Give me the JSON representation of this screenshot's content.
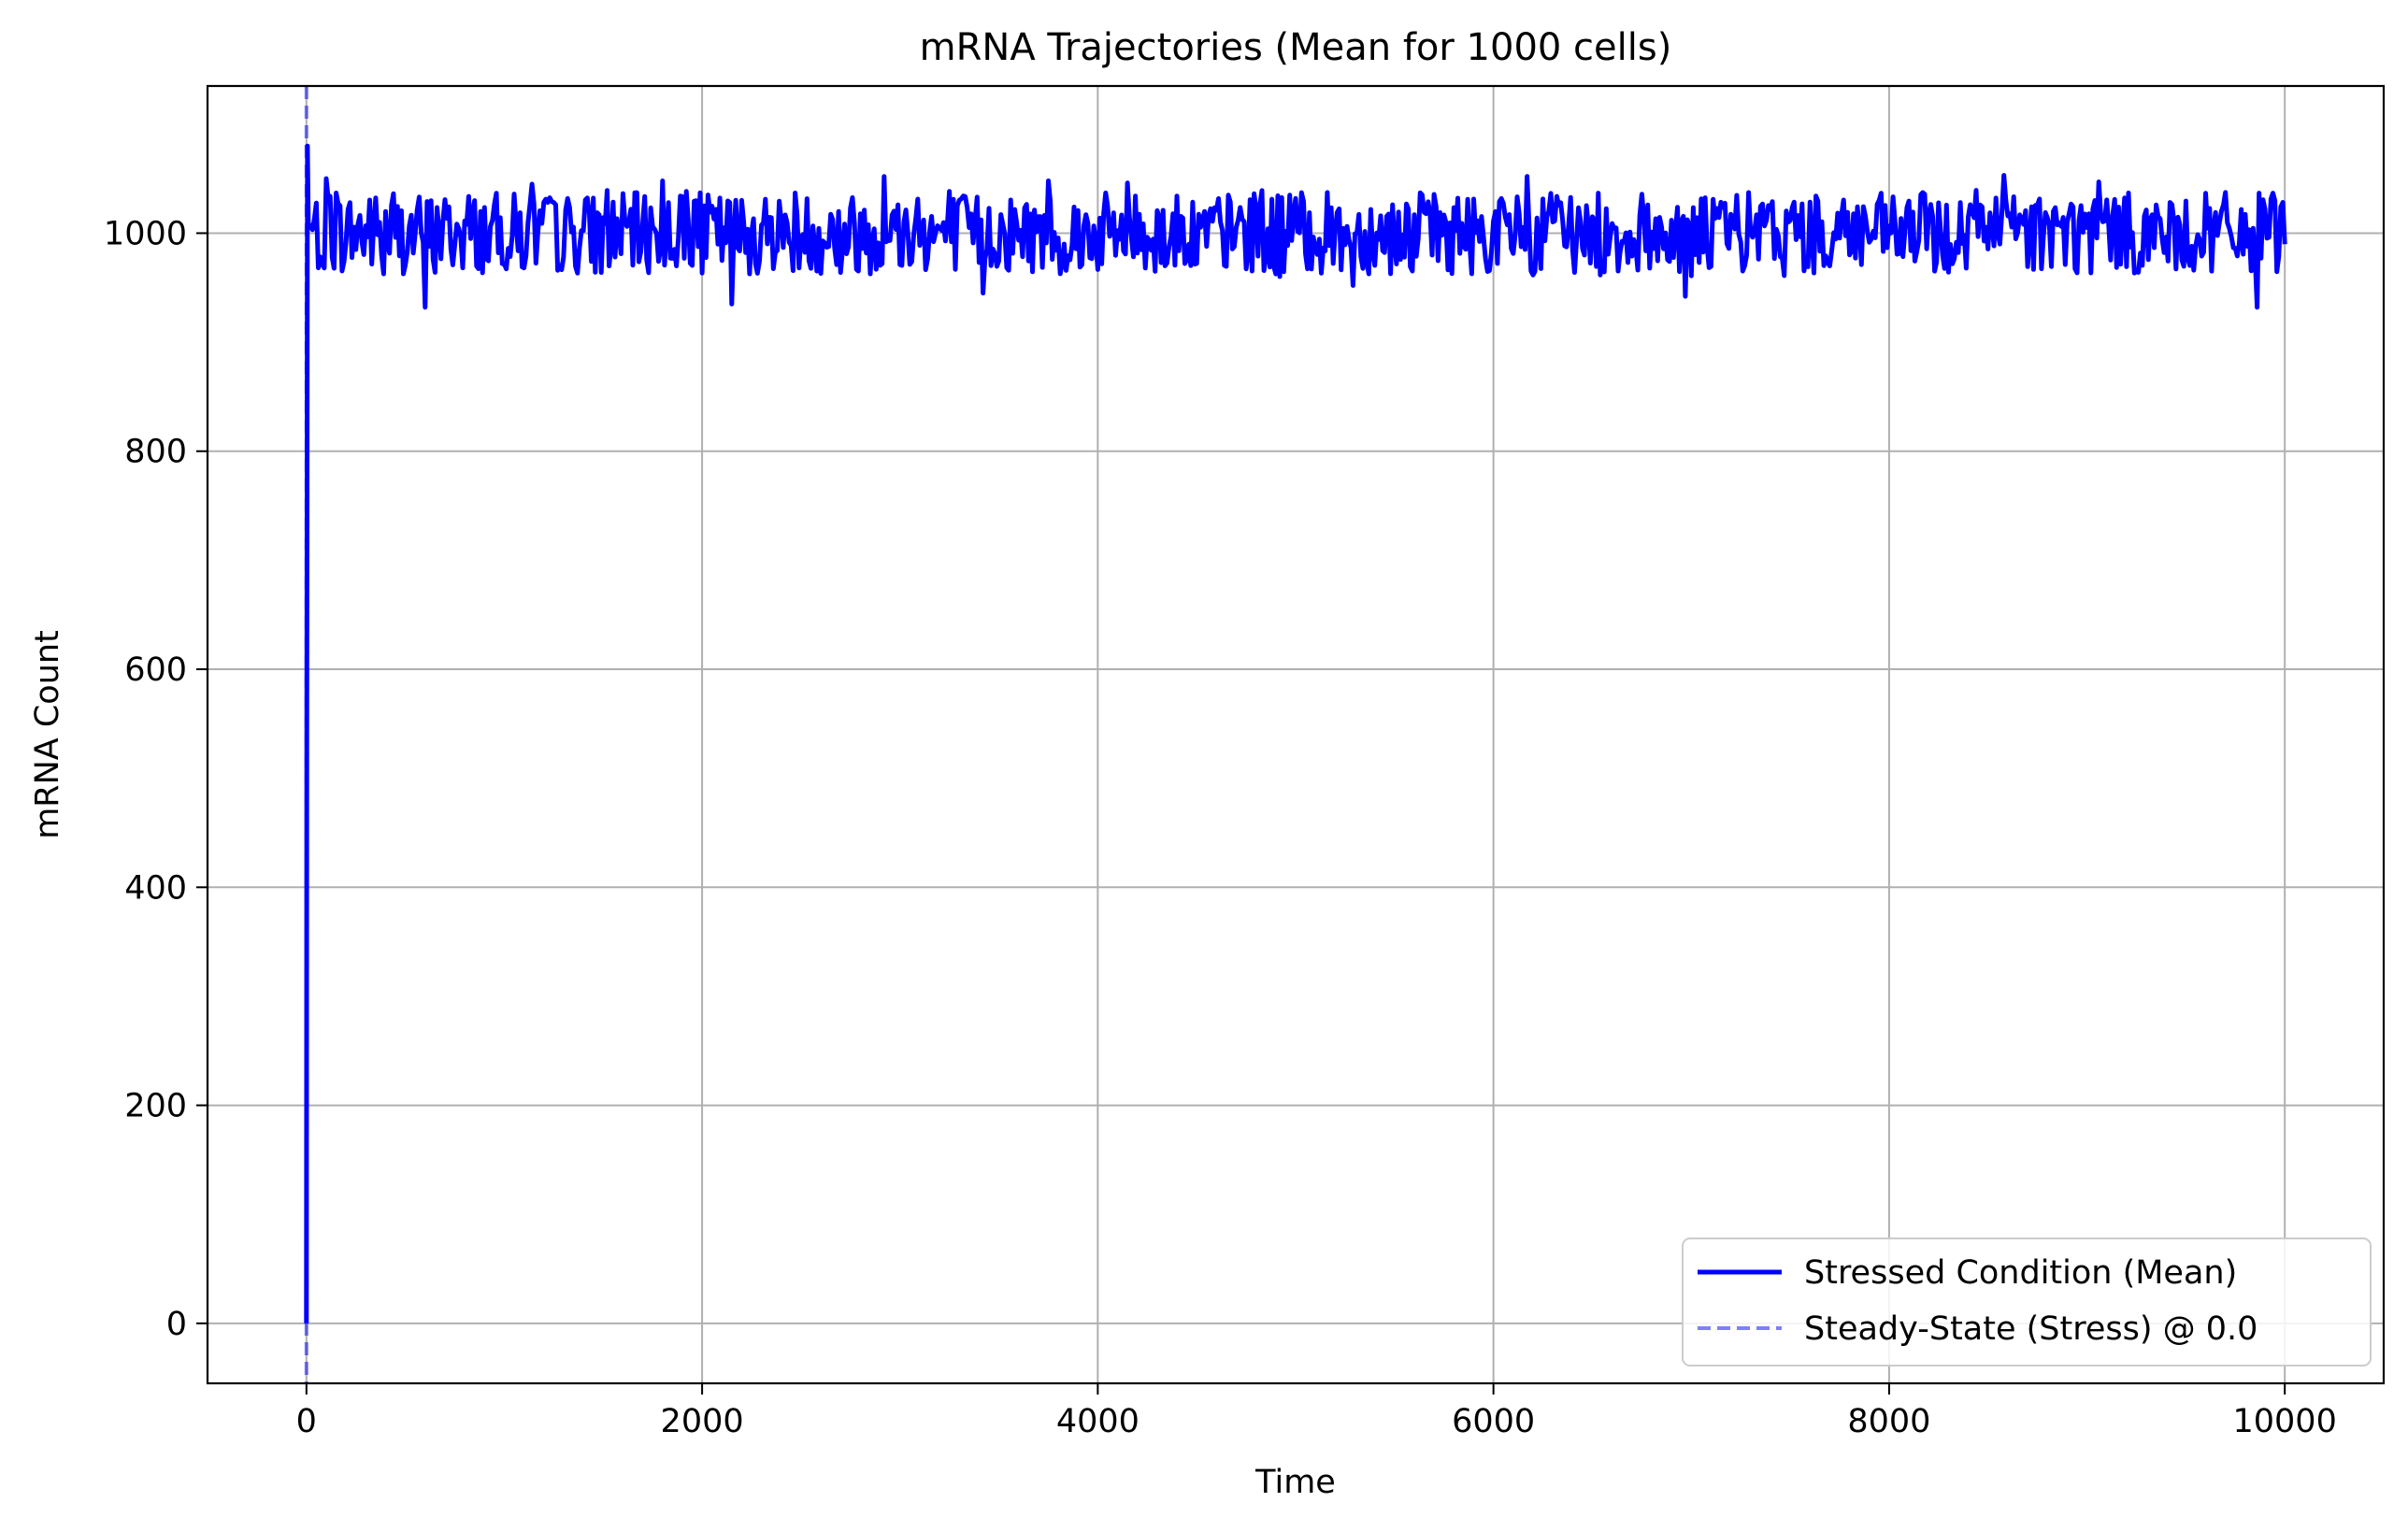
{
  "chart_data": {
    "type": "line",
    "title": "mRNA Trajectories (Mean for 1000 cells)",
    "xlabel": "Time",
    "ylabel": "mRNA Count",
    "xlim": [
      -500,
      10500
    ],
    "ylim": [
      -55,
      1135
    ],
    "xticks": [
      0,
      2000,
      4000,
      6000,
      8000,
      10000
    ],
    "yticks": [
      0,
      200,
      400,
      600,
      800,
      1000
    ],
    "grid": true,
    "legend": {
      "placement": "lower-right",
      "entries": [
        "Stressed Condition (Mean)",
        "Steady-State (Stress) @ 0.0"
      ]
    },
    "series": [
      {
        "name": "Stressed Condition (Mean)",
        "color": "#0000ff",
        "style": "solid",
        "initial": [
          [
            0,
            0
          ],
          [
            2,
            540
          ],
          [
            5,
            1080
          ],
          [
            10,
            1005
          ]
        ],
        "x_range": [
          10,
          10000
        ],
        "mean": 1000,
        "band": [
          970,
          1035
        ],
        "spikes": [
          {
            "x": 100,
            "y": 1050
          },
          {
            "x": 600,
            "y": 932
          },
          {
            "x": 1140,
            "y": 1045
          },
          {
            "x": 1800,
            "y": 1048
          },
          {
            "x": 2150,
            "y": 935
          },
          {
            "x": 2920,
            "y": 1052
          },
          {
            "x": 3420,
            "y": 945
          },
          {
            "x": 3750,
            "y": 1048
          },
          {
            "x": 4150,
            "y": 1046
          },
          {
            "x": 5290,
            "y": 952
          },
          {
            "x": 6170,
            "y": 1052
          },
          {
            "x": 6970,
            "y": 942
          },
          {
            "x": 8580,
            "y": 1053
          },
          {
            "x": 9060,
            "y": 1047
          },
          {
            "x": 9860,
            "y": 932
          }
        ]
      },
      {
        "name": "Steady-State (Stress) @ 0.0",
        "color": "#0000ff",
        "opacity": 0.5,
        "style": "dashed",
        "orientation": "vertical",
        "x": 0.0
      }
    ]
  }
}
